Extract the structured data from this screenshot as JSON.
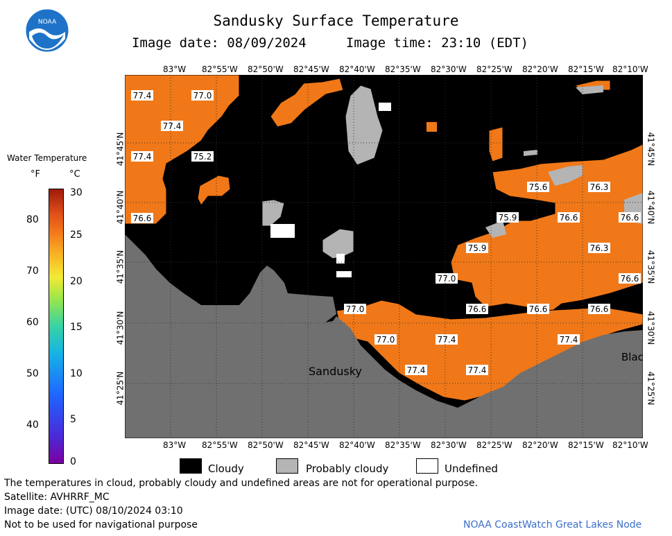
{
  "title": "Sandusky Surface Temperature",
  "image_date_local": "Image date: 08/09/2024",
  "image_time_local": "Image time: 23:10 (EDT)",
  "logo_text": "NOAA",
  "legend": {
    "title": "Water Temperature",
    "unit_f": "°F",
    "unit_c": "°C",
    "ticks_f": [
      "80",
      "70",
      "60",
      "50",
      "40"
    ],
    "ticks_c": [
      "30",
      "25",
      "20",
      "15",
      "10",
      "5",
      "0"
    ]
  },
  "axes": {
    "lon_labels": [
      "83°W",
      "82°55'W",
      "82°50'W",
      "82°45'W",
      "82°40'W",
      "82°35'W",
      "82°30'W",
      "82°25'W",
      "82°20'W",
      "82°15'W",
      "82°10'W"
    ],
    "lat_labels": [
      "41°45'N",
      "41°40'N",
      "41°35'N",
      "41°30'N",
      "41°25'N"
    ]
  },
  "map": {
    "colors": {
      "warm": "#f07818",
      "cloud": "#000000",
      "land": "#707070",
      "probcloud": "#b4b4b4",
      "undefined": "#ffffff"
    },
    "temperature_labels": [
      {
        "v": "77.4"
      },
      {
        "v": "77.0"
      },
      {
        "v": "77.4"
      },
      {
        "v": "77.4"
      },
      {
        "v": "75.2"
      },
      {
        "v": "76.6"
      },
      {
        "v": "75.6"
      },
      {
        "v": "76.3"
      },
      {
        "v": "75.9"
      },
      {
        "v": "76.6"
      },
      {
        "v": "76.6"
      },
      {
        "v": "75.9"
      },
      {
        "v": "76.3"
      },
      {
        "v": "77.0"
      },
      {
        "v": "76.6"
      },
      {
        "v": "77.0"
      },
      {
        "v": "76.6"
      },
      {
        "v": "76.6"
      },
      {
        "v": "76.6"
      },
      {
        "v": "77.0"
      },
      {
        "v": "77.4"
      },
      {
        "v": "77.4"
      },
      {
        "v": "77.4"
      },
      {
        "v": "77.4"
      }
    ],
    "place_labels": [
      "Sandusky",
      "Blac"
    ]
  },
  "key": {
    "cloudy": "Cloudy",
    "probably_cloudy": "Probably cloudy",
    "undefined": "Undefined"
  },
  "footer": {
    "disclaimer": "The temperatures in cloud, probably cloudy and undefined areas are not for operational purpose.",
    "satellite": "Satellite: AVHRRF_MC",
    "utc_date": "Image date: (UTC) 08/10/2024  03:10",
    "nav": "Not to be used for navigational purpose",
    "credit": "NOAA CoastWatch Great Lakes Node"
  }
}
